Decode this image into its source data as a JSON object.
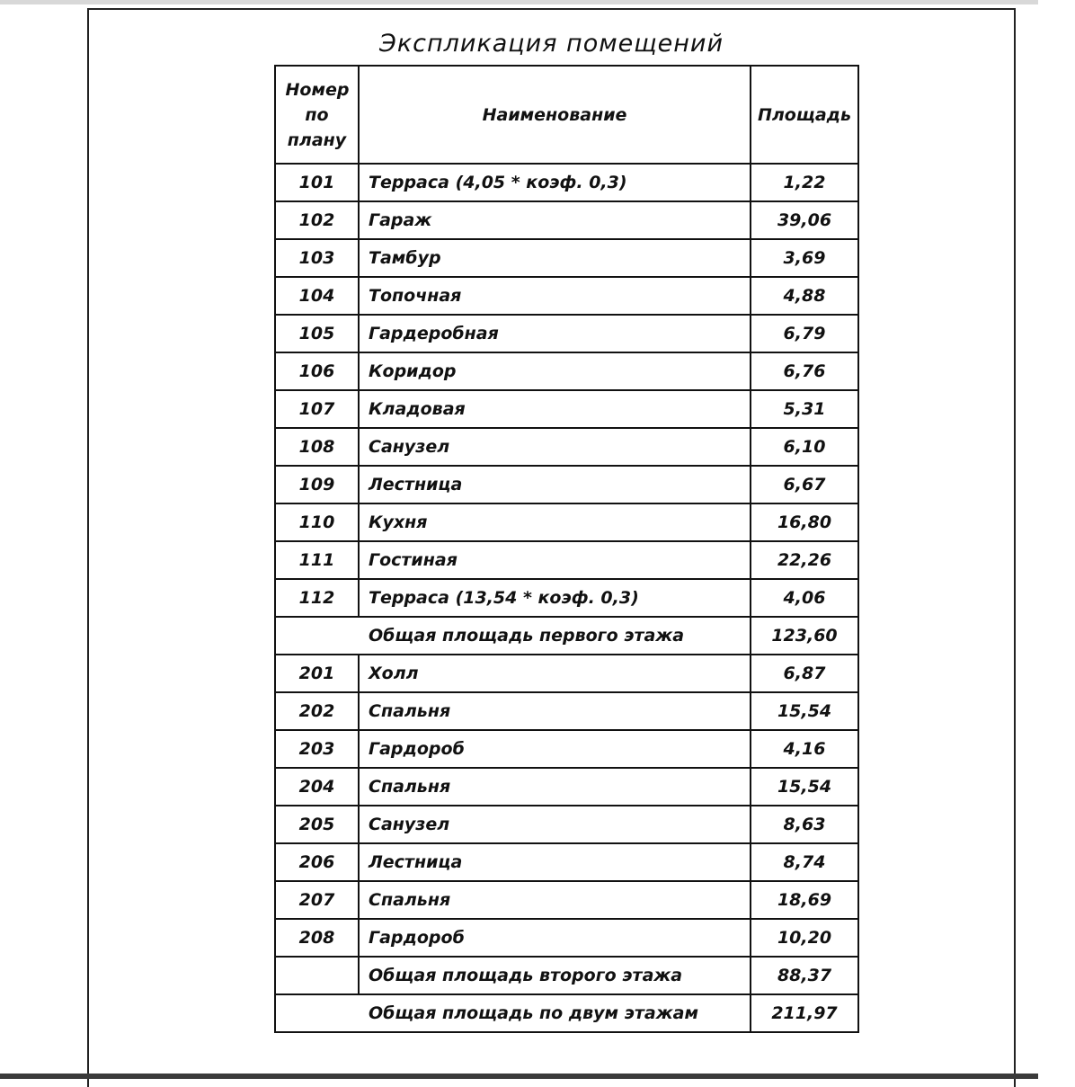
{
  "title": "Экспликация помещений",
  "header": {
    "number": "Номер по плану",
    "name": "Наименование",
    "area": "Площадь"
  },
  "floor1": [
    {
      "n": "101",
      "name": "Терраса (4,05 * коэф. 0,3)",
      "area": "1,22"
    },
    {
      "n": "102",
      "name": "Гараж",
      "area": "39,06"
    },
    {
      "n": "103",
      "name": "Тамбур",
      "area": "3,69"
    },
    {
      "n": "104",
      "name": "Топочная",
      "area": "4,88"
    },
    {
      "n": "105",
      "name": "Гардеробная",
      "area": "6,79"
    },
    {
      "n": "106",
      "name": "Коридор",
      "area": "6,76"
    },
    {
      "n": "107",
      "name": "Кладовая",
      "area": "5,31"
    },
    {
      "n": "108",
      "name": "Санузел",
      "area": "6,10"
    },
    {
      "n": "109",
      "name": "Лестница",
      "area": "6,67"
    },
    {
      "n": "110",
      "name": "Кухня",
      "area": "16,80"
    },
    {
      "n": "111",
      "name": "Гостиная",
      "area": "22,26"
    },
    {
      "n": "112",
      "name": "Терраса (13,54 * коэф. 0,3)",
      "area": "4,06"
    }
  ],
  "total1": {
    "name": "Общая площадь первого этажа",
    "area": "123,60"
  },
  "floor2": [
    {
      "n": "201",
      "name": "Холл",
      "area": "6,87"
    },
    {
      "n": "202",
      "name": "Спальня",
      "area": "15,54"
    },
    {
      "n": "203",
      "name": "Гардороб",
      "area": "4,16"
    },
    {
      "n": "204",
      "name": "Спальня",
      "area": "15,54"
    },
    {
      "n": "205",
      "name": "Санузел",
      "area": "8,63"
    },
    {
      "n": "206",
      "name": "Лестница",
      "area": "8,74"
    },
    {
      "n": "207",
      "name": "Спальня",
      "area": "18,69"
    },
    {
      "n": "208",
      "name": "Гардороб",
      "area": "10,20"
    }
  ],
  "total2": {
    "name": "Общая площадь второго этажа",
    "area": "88,37"
  },
  "total": {
    "name": "Общая площадь по двум этажам",
    "area": "211,97"
  }
}
